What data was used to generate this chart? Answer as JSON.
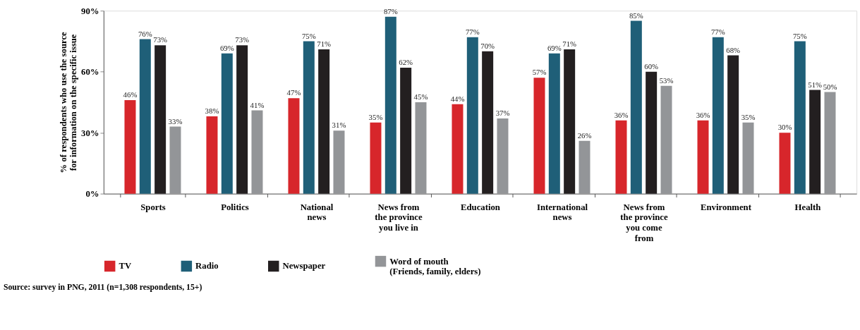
{
  "chart_data": {
    "type": "bar",
    "ylabel": "% of respondents who use the source\nfor information on the specific issue",
    "categories": [
      "Sports",
      "Politics",
      "National\nnews",
      "News from\nthe province\nyou live in",
      "Education",
      "International\n\nnews",
      "News from\nthe province\nyou come\nfrom",
      "Environment",
      "Health"
    ],
    "series": [
      {
        "name": "TV",
        "color": "#d7262b",
        "values": [
          46,
          38,
          47,
          35,
          44,
          57,
          36,
          36,
          30
        ],
        "value_labels": [
          "46%",
          "38%",
          "47%",
          "35%",
          "44%",
          "57%",
          "36%",
          "36%",
          "30%"
        ]
      },
      {
        "name": "Radio",
        "color": "#1f5f78",
        "values": [
          76,
          69,
          75,
          87,
          77,
          69,
          85,
          77,
          75
        ],
        "value_labels": [
          "76%",
          "69%",
          "75%",
          "87%",
          "77%",
          "69%",
          "85%",
          "77%",
          "75%"
        ]
      },
      {
        "name": "Newspaper",
        "color": "#231f20",
        "values": [
          73,
          73,
          71,
          62,
          70,
          71,
          60,
          68,
          51
        ],
        "value_labels": [
          "73%",
          "73%",
          "71%",
          "62%",
          "70%",
          "71%",
          "60%",
          "68%",
          "51%"
        ]
      },
      {
        "name": "Word of mouth\n(Friends, family, elders)",
        "color": "#939598",
        "values": [
          33,
          41,
          31,
          45,
          37,
          26,
          53,
          35,
          50
        ],
        "value_labels": [
          "33%",
          "41%",
          "31%",
          "45%",
          "37%",
          "26%",
          "53%",
          "35%",
          "50%"
        ]
      }
    ],
    "ylim": [
      0,
      90
    ],
    "yticks": [
      {
        "value": 0,
        "label": "0%"
      },
      {
        "value": 30,
        "label": "30%"
      },
      {
        "value": 60,
        "label": "60%"
      },
      {
        "value": 90,
        "label": "90%"
      }
    ],
    "grid": false,
    "legend": "bottom",
    "annotations": [
      "Source: survey in PNG, 2011 (n=1,308 respondents, 15+)"
    ]
  }
}
